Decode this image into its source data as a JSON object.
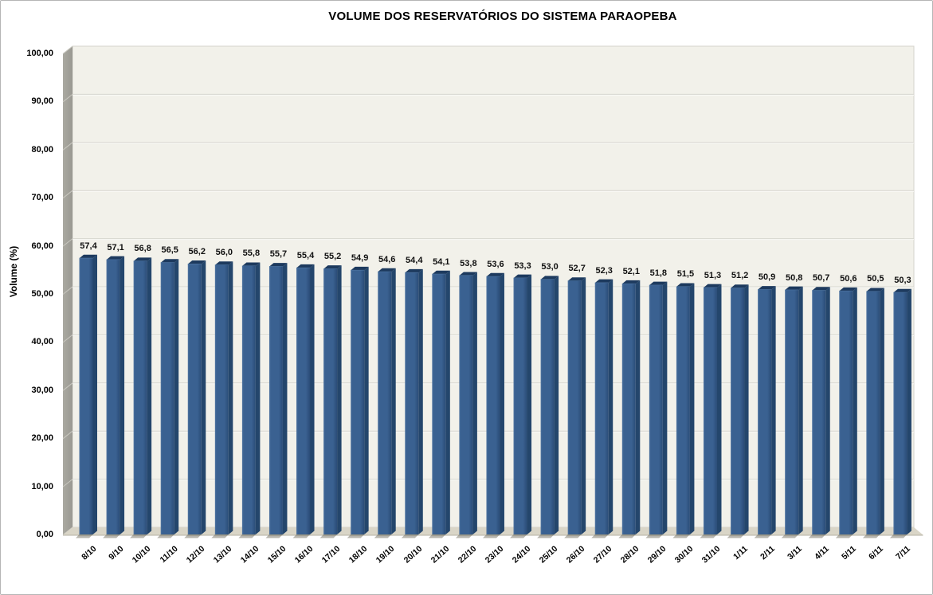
{
  "chart_data": {
    "type": "bar",
    "style": "3d-column",
    "title": "VOLUME DOS RESERVATÓRIOS DO SISTEMA PARAOPEBA",
    "xlabel": "",
    "ylabel": "Volume (%)",
    "ylim": [
      0,
      100
    ],
    "ytick_interval": 10,
    "ytick_labels": [
      "0,00",
      "10,00",
      "20,00",
      "30,00",
      "40,00",
      "50,00",
      "60,00",
      "70,00",
      "80,00",
      "90,00",
      "100,00"
    ],
    "grid": "horizontal",
    "legend": "none",
    "categories": [
      "8/10",
      "9/10",
      "10/10",
      "11/10",
      "12/10",
      "13/10",
      "14/10",
      "15/10",
      "16/10",
      "17/10",
      "18/10",
      "19/10",
      "20/10",
      "21/10",
      "22/10",
      "23/10",
      "24/10",
      "25/10",
      "26/10",
      "27/10",
      "28/10",
      "29/10",
      "30/10",
      "31/10",
      "1/11",
      "2/11",
      "3/11",
      "4/11",
      "5/11",
      "6/11",
      "7/11"
    ],
    "values": [
      57.4,
      57.1,
      56.8,
      56.5,
      56.2,
      56.0,
      55.8,
      55.7,
      55.4,
      55.2,
      54.9,
      54.6,
      54.4,
      54.1,
      53.8,
      53.6,
      53.3,
      53.0,
      52.7,
      52.3,
      52.1,
      51.8,
      51.5,
      51.3,
      51.2,
      50.9,
      50.8,
      50.7,
      50.6,
      50.5,
      50.3
    ],
    "value_labels": [
      "57,4",
      "57,1",
      "56,8",
      "56,5",
      "56,2",
      "56,0",
      "55,8",
      "55,7",
      "55,4",
      "55,2",
      "54,9",
      "54,6",
      "54,4",
      "54,1",
      "53,8",
      "53,6",
      "53,3",
      "53,0",
      "52,7",
      "52,3",
      "52,1",
      "51,8",
      "51,5",
      "51,3",
      "51,2",
      "50,9",
      "50,8",
      "50,7",
      "50,6",
      "50,5",
      "50,3"
    ],
    "colors": {
      "bar_face": "#3a6191",
      "bar_face_light": "#4e73a0",
      "bar_face_dark": "#2a4c77",
      "bar_top": "#1d3a5e",
      "bar_top_edge": "#557ca8",
      "bar_side": "#24466c",
      "plot_bg": "#f2f1ea",
      "plot_border": "#d4d3cc",
      "gridline": "#d7d6cf",
      "gridline_highlight": "#fbfbf8",
      "wall": "#9a9992",
      "wall_light": "#aaa9a1",
      "wall_tick": "#c9c8c0",
      "floor": "#d9d5c7",
      "floor_edge": "#b5b1a3",
      "shadow": "#5f5a4c",
      "label_text": "#111111"
    }
  }
}
